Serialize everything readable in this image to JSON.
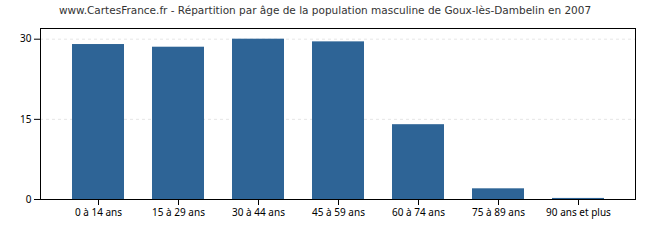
{
  "chart_data": {
    "type": "bar",
    "title": "www.CartesFrance.fr - Répartition par âge de la population masculine de Goux-lès-Dambelin en 2007",
    "categories": [
      "0 à 14 ans",
      "15 à 29 ans",
      "30 à 44 ans",
      "45 à 59 ans",
      "60 à 74 ans",
      "75 à 89 ans",
      "90 ans et plus"
    ],
    "values": [
      29,
      28.5,
      30,
      29.5,
      14,
      2,
      0.2
    ],
    "color": "#2e6496",
    "ylim": [
      0,
      32
    ],
    "yticks": [
      0,
      15,
      30
    ],
    "grid": true
  }
}
